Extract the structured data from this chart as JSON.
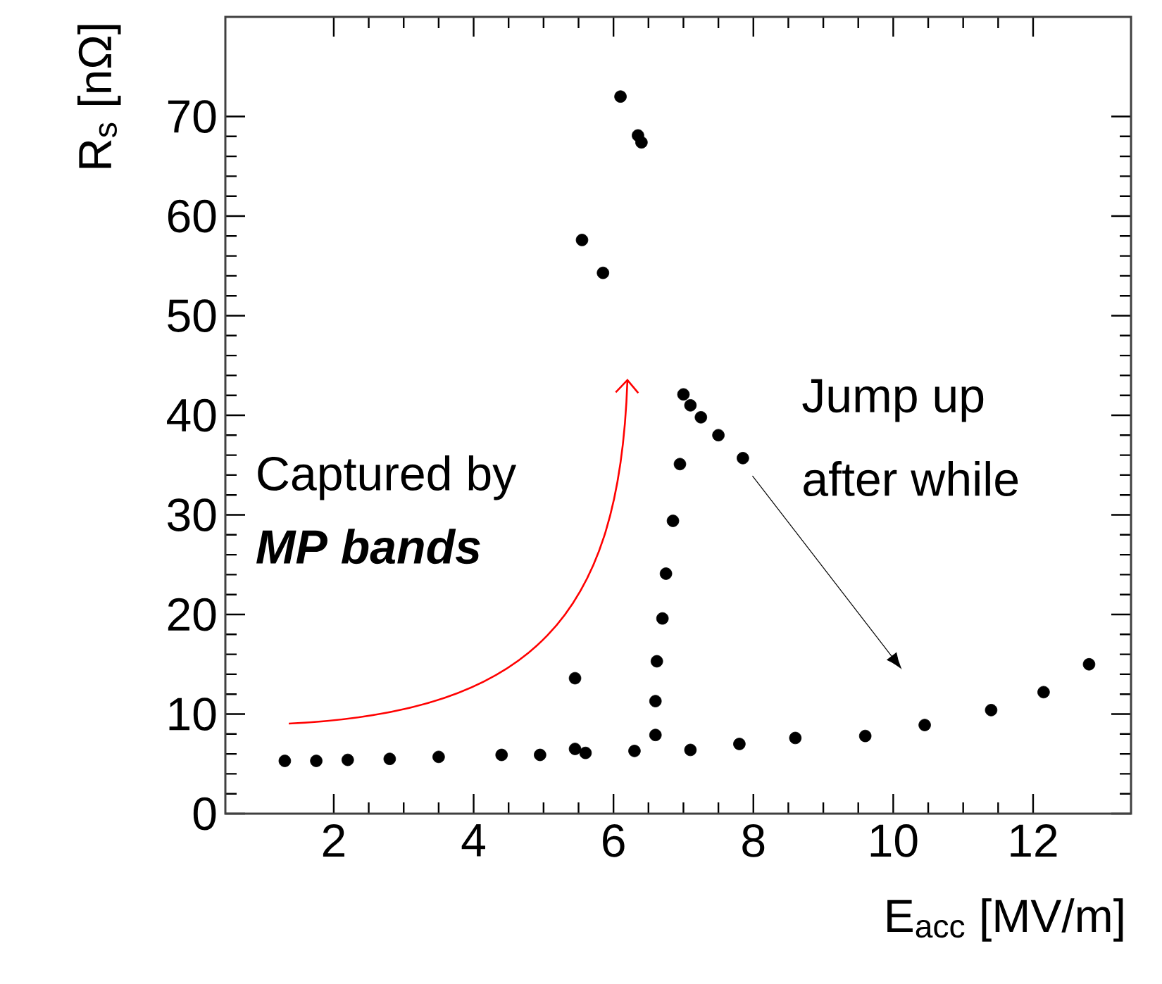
{
  "chart_data": {
    "type": "scatter",
    "xlabel": "E$_{acc}$ [MV/m]",
    "ylabel": "R$_{s}$ [nΩ]",
    "xlim": [
      0.45,
      13.4
    ],
    "ylim": [
      0,
      80
    ],
    "xticks": [
      2,
      4,
      6,
      8,
      10,
      12
    ],
    "yticks": [
      0,
      10,
      20,
      30,
      40,
      50,
      60,
      70
    ],
    "marker": "circle",
    "series": [
      {
        "color": "#000000",
        "x": [
          1.3,
          1.75,
          2.2,
          2.8,
          3.5,
          4.4,
          4.95,
          5.45,
          5.6,
          6.3,
          6.6,
          7.1,
          7.8,
          8.6,
          9.6,
          10.45,
          11.4,
          12.15,
          12.8,
          6.6,
          6.62,
          6.7,
          6.75,
          6.85,
          6.95,
          7.0,
          7.1,
          7.25,
          7.5,
          7.85,
          5.45,
          5.55,
          5.85,
          6.1,
          6.35,
          6.4
        ],
        "values": [
          5.3,
          5.3,
          5.4,
          5.5,
          5.7,
          5.9,
          5.9,
          6.5,
          6.1,
          6.3,
          7.9,
          6.4,
          7.0,
          7.6,
          7.8,
          8.9,
          10.4,
          12.2,
          15.0,
          11.3,
          15.3,
          19.6,
          24.1,
          29.4,
          35.1,
          42.1,
          41.0,
          39.8,
          38.0,
          35.7,
          13.6,
          57.6,
          54.3,
          72.0,
          68.1,
          67.4
        ]
      }
    ],
    "annotations": [
      "Captured by",
      "MP bands",
      "Jump up",
      "after while"
    ]
  }
}
